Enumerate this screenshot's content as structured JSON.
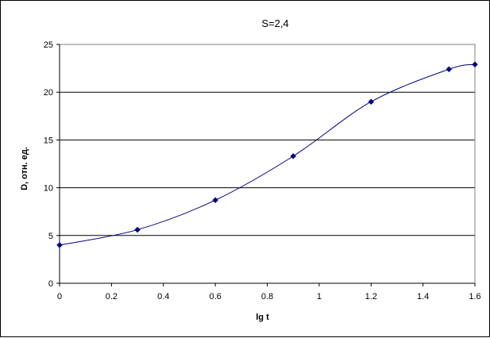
{
  "chart_data": {
    "type": "line",
    "title": "S=2,4",
    "xlabel": "lg t",
    "ylabel": "D, отн. ед.",
    "xlim": [
      0,
      1.6
    ],
    "ylim": [
      0,
      25
    ],
    "x_ticks": [
      "0",
      "0.2",
      "0.4",
      "0.6",
      "0.8",
      "1",
      "1.2",
      "1.4",
      "1.6"
    ],
    "y_ticks": [
      "0",
      "5",
      "10",
      "15",
      "20",
      "25"
    ],
    "grid": "horizontal",
    "legend": "none",
    "series": [
      {
        "color": "#000080",
        "marker": "diamond",
        "smooth": true,
        "x": [
          0,
          0.3,
          0.6,
          0.9,
          1.2,
          1.5,
          1.6
        ],
        "y": [
          4.0,
          5.6,
          8.7,
          13.3,
          19.0,
          22.4,
          22.9
        ]
      }
    ]
  }
}
